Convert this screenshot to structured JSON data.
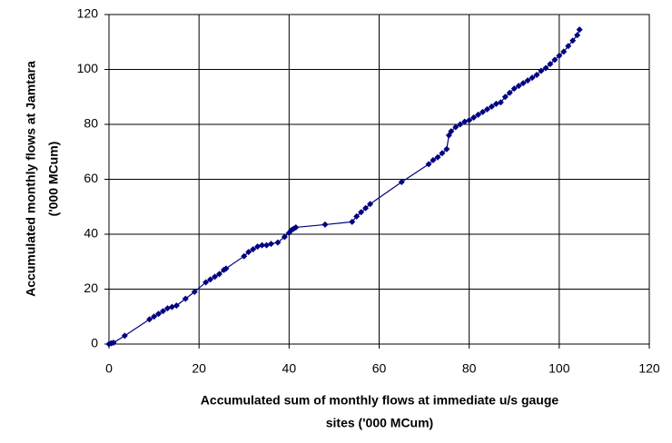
{
  "chart_data": {
    "type": "line",
    "xlabel": [
      "Accumulated  sum of monthly flows at immediate u/s gauge",
      "sites   ('000 MCum)"
    ],
    "ylabel": [
      "Accumulated monthly flows at Jamtara",
      "('000 MCum)"
    ],
    "xlim": [
      0,
      120
    ],
    "xticks": [
      0,
      20,
      40,
      60,
      80,
      100,
      120
    ],
    "ylim": [
      0,
      120
    ],
    "yticks": [
      0,
      20,
      40,
      60,
      80,
      100,
      120
    ],
    "grid": true,
    "series": [
      {
        "color": "#000080",
        "x": [
          0,
          0.5,
          1,
          3.5,
          9,
          10,
          11,
          12,
          13,
          14,
          15,
          17,
          19,
          21.5,
          22.5,
          23.5,
          24.5,
          25.5,
          26,
          30,
          31,
          32,
          33,
          34,
          35,
          36,
          37.5,
          39,
          40,
          40.5,
          41,
          41.5,
          48,
          54,
          55,
          56,
          57,
          58,
          65,
          71,
          72,
          73,
          74,
          75,
          75.5,
          76,
          77,
          78,
          79,
          80,
          81,
          82,
          83,
          84,
          85,
          86,
          87,
          88,
          89,
          90,
          91,
          92,
          93,
          94,
          95,
          96,
          97,
          98,
          99,
          100,
          101,
          102,
          103,
          104,
          104.5
        ],
        "y": [
          0,
          0.3,
          0.5,
          3,
          9,
          10,
          11,
          12,
          13,
          13.5,
          14,
          16.5,
          19,
          22.5,
          23.5,
          24.5,
          25.5,
          27,
          27.5,
          32,
          33.5,
          34.5,
          35.5,
          36,
          36,
          36.5,
          37,
          39,
          40.5,
          41.5,
          42,
          42.5,
          43.5,
          44.5,
          46.5,
          48,
          49.5,
          51,
          59,
          65.5,
          67,
          68,
          69.5,
          71,
          76,
          77.5,
          79,
          80,
          81,
          81.5,
          82.5,
          83.5,
          84.5,
          85.5,
          86.5,
          87.5,
          88,
          90,
          91.5,
          93,
          94,
          95,
          96,
          97,
          98,
          99.5,
          100.5,
          102,
          103.5,
          105,
          106.5,
          108.5,
          110.5,
          112.5,
          114.5
        ]
      }
    ]
  }
}
